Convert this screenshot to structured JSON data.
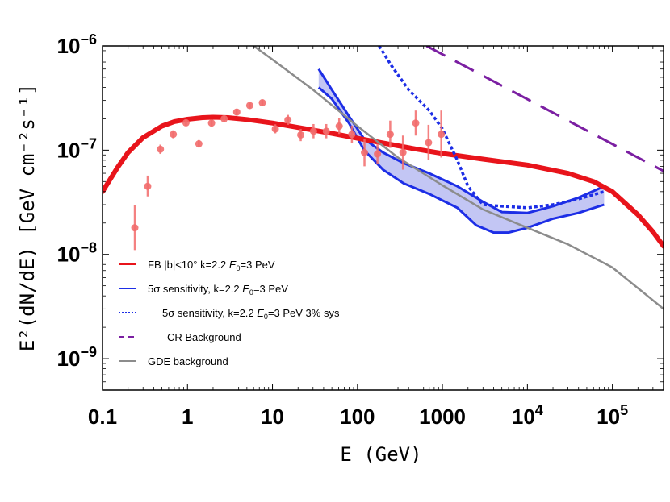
{
  "chart_data": {
    "type": "line",
    "title": "",
    "xlabel": "E  (GeV)",
    "ylabel": "E²(dN/dE)  [GeV cm⁻²s⁻¹]",
    "xscale": "log",
    "yscale": "log",
    "xlim": [
      0.1,
      400000
    ],
    "ylim": [
      5e-10,
      1e-06
    ],
    "grid": false,
    "legend_position": "bottom-left",
    "x_ticks": [
      {
        "value": 0.1,
        "label": "0.1"
      },
      {
        "value": 1,
        "label": "1"
      },
      {
        "value": 10,
        "label": "10"
      },
      {
        "value": 100,
        "label": "100"
      },
      {
        "value": 1000,
        "label": "1000"
      },
      {
        "value": 10000,
        "label": "10",
        "sup": "4"
      },
      {
        "value": 100000,
        "label": "10",
        "sup": "5"
      }
    ],
    "y_ticks": [
      {
        "value": 1e-09,
        "label": "10",
        "sup": "−9"
      },
      {
        "value": 1e-08,
        "label": "10",
        "sup": "−8"
      },
      {
        "value": 1e-07,
        "label": "10",
        "sup": "−7"
      },
      {
        "value": 1e-06,
        "label": "10",
        "sup": "−6"
      }
    ],
    "series": [
      {
        "name": "FB |b|<10° k=2.2 E0=3 PeV",
        "legend_label": "FB |b|<10° k=2.2 ",
        "legend_label_italic": "E",
        "legend_label_sub": "0",
        "legend_label_tail": "=3 PeV",
        "color": "#e8141b",
        "style": "solid-thick",
        "points": [
          [
            0.1,
            4e-08
          ],
          [
            0.15,
            6.8e-08
          ],
          [
            0.2,
            9.5e-08
          ],
          [
            0.3,
            1.32e-07
          ],
          [
            0.5,
            1.7e-07
          ],
          [
            0.7,
            1.88e-07
          ],
          [
            1,
            1.98e-07
          ],
          [
            1.5,
            2.05e-07
          ],
          [
            2,
            2.07e-07
          ],
          [
            3,
            2.05e-07
          ],
          [
            5,
            1.97e-07
          ],
          [
            10,
            1.82e-07
          ],
          [
            20,
            1.65e-07
          ],
          [
            50,
            1.45e-07
          ],
          [
            100,
            1.3e-07
          ],
          [
            200,
            1.17e-07
          ],
          [
            500,
            1.02e-07
          ],
          [
            1000,
            9.3e-08
          ],
          [
            3000,
            8.2e-08
          ],
          [
            10000,
            7.2e-08
          ],
          [
            30000,
            6e-08
          ],
          [
            60000,
            5e-08
          ],
          [
            100000,
            4e-08
          ],
          [
            200000,
            2.4e-08
          ],
          [
            300000,
            1.65e-08
          ],
          [
            400000,
            1.2e-08
          ]
        ]
      },
      {
        "name": "5σ sensitivity, k=2.2 E0=3 PeV",
        "legend_label": "5σ sensitivity, k=2.2 ",
        "legend_label_italic": "E",
        "legend_label_sub": "0",
        "legend_label_tail": "=3 PeV",
        "color": "#1d2ee6",
        "style": "band",
        "upper": [
          [
            35,
            6e-07
          ],
          [
            50,
            3.8e-07
          ],
          [
            80,
            2.1e-07
          ],
          [
            120,
            1.28e-07
          ],
          [
            200,
            9.5e-08
          ],
          [
            350,
            7.5e-08
          ],
          [
            700,
            6e-08
          ],
          [
            1500,
            4.5e-08
          ],
          [
            3000,
            3.2e-08
          ],
          [
            5000,
            2.55e-08
          ],
          [
            10000,
            2.5e-08
          ],
          [
            20000,
            2.9e-08
          ],
          [
            40000,
            3.5e-08
          ],
          [
            80000,
            4.5e-08
          ]
        ],
        "lower": [
          [
            35,
            4e-07
          ],
          [
            50,
            3.1e-07
          ],
          [
            80,
            1.8e-07
          ],
          [
            120,
            1e-07
          ],
          [
            200,
            6.5e-08
          ],
          [
            350,
            4.8e-08
          ],
          [
            700,
            3.8e-08
          ],
          [
            1500,
            2.8e-08
          ],
          [
            2500,
            1.9e-08
          ],
          [
            4000,
            1.62e-08
          ],
          [
            6000,
            1.62e-08
          ],
          [
            10000,
            1.8e-08
          ],
          [
            20000,
            2.2e-08
          ],
          [
            40000,
            2.5e-08
          ],
          [
            80000,
            3e-08
          ]
        ]
      },
      {
        "name": "5σ sensitivity, k=2.2 E0=3 PeV 3% sys",
        "legend_label": "5σ sensitivity, k=2.2 ",
        "legend_label_italic": "E",
        "legend_label_sub": "0",
        "legend_label_tail": "=3 PeV 3% sys",
        "color": "#1d2ee6",
        "style": "dotted",
        "points": [
          [
            180,
            1e-06
          ],
          [
            250,
            6.5e-07
          ],
          [
            400,
            3.8e-07
          ],
          [
            700,
            2.4e-07
          ],
          [
            1000,
            1.6e-07
          ],
          [
            1500,
            8e-08
          ],
          [
            2000,
            4.5e-08
          ],
          [
            3000,
            3e-08
          ],
          [
            5000,
            2.9e-08
          ],
          [
            10000,
            2.8e-08
          ],
          [
            20000,
            3e-08
          ],
          [
            40000,
            3.4e-08
          ],
          [
            80000,
            4e-08
          ]
        ]
      },
      {
        "name": "CR Background",
        "legend_label": "CR Background",
        "color": "#7b1fa2",
        "style": "dashed",
        "points": [
          [
            650,
            1e-06
          ],
          [
            400000,
            6.3e-08
          ]
        ]
      },
      {
        "name": "GDE background",
        "legend_label": "GDE background",
        "color": "#8c8c8c",
        "style": "solid",
        "points": [
          [
            6,
            1e-06
          ],
          [
            10,
            7.4e-07
          ],
          [
            30,
            3.8e-07
          ],
          [
            100,
            1.7e-07
          ],
          [
            300,
            8.5e-08
          ],
          [
            1000,
            4.6e-08
          ],
          [
            3000,
            2.7e-08
          ],
          [
            10000,
            1.8e-08
          ],
          [
            30000,
            1.25e-08
          ],
          [
            100000,
            7.5e-09
          ],
          [
            400000,
            3e-09
          ]
        ]
      }
    ],
    "data_points": {
      "name": "data",
      "color": "#f26b6b",
      "points": [
        {
          "x": 0.24,
          "y": 1.8e-08,
          "lo": 1.1e-08,
          "hi": 3e-08
        },
        {
          "x": 0.34,
          "y": 4.5e-08,
          "lo": 3.6e-08,
          "hi": 5.7e-08
        },
        {
          "x": 0.48,
          "y": 1.02e-07,
          "lo": 9.2e-08,
          "hi": 1.13e-07
        },
        {
          "x": 0.68,
          "y": 1.42e-07,
          "lo": 1.3e-07,
          "hi": 1.55e-07
        },
        {
          "x": 0.96,
          "y": 1.83e-07,
          "lo": 1.72e-07,
          "hi": 1.95e-07
        },
        {
          "x": 1.36,
          "y": 1.15e-07,
          "lo": 1.06e-07,
          "hi": 1.25e-07
        },
        {
          "x": 1.92,
          "y": 1.82e-07,
          "lo": 1.7e-07,
          "hi": 1.95e-07
        },
        {
          "x": 2.7,
          "y": 2e-07,
          "lo": 1.87e-07,
          "hi": 2.13e-07
        },
        {
          "x": 3.8,
          "y": 2.32e-07,
          "lo": 2.17e-07,
          "hi": 2.48e-07
        },
        {
          "x": 5.4,
          "y": 2.68e-07,
          "lo": 2.52e-07,
          "hi": 2.85e-07
        },
        {
          "x": 7.6,
          "y": 2.85e-07,
          "lo": 2.68e-07,
          "hi": 3.03e-07
        },
        {
          "x": 10.8,
          "y": 1.6e-07,
          "lo": 1.45e-07,
          "hi": 1.77e-07
        },
        {
          "x": 15.2,
          "y": 1.95e-07,
          "lo": 1.75e-07,
          "hi": 2.18e-07
        },
        {
          "x": 21.5,
          "y": 1.4e-07,
          "lo": 1.22e-07,
          "hi": 1.6e-07
        },
        {
          "x": 30.4,
          "y": 1.52e-07,
          "lo": 1.3e-07,
          "hi": 1.78e-07
        },
        {
          "x": 43,
          "y": 1.52e-07,
          "lo": 1.3e-07,
          "hi": 1.78e-07
        },
        {
          "x": 61,
          "y": 1.7e-07,
          "lo": 1.43e-07,
          "hi": 2.02e-07
        },
        {
          "x": 86,
          "y": 1.42e-07,
          "lo": 1.17e-07,
          "hi": 1.72e-07
        },
        {
          "x": 121,
          "y": 9.5e-08,
          "lo": 7e-08,
          "hi": 1.28e-07
        },
        {
          "x": 172,
          "y": 9.2e-08,
          "lo": 7.3e-08,
          "hi": 1.15e-07
        },
        {
          "x": 243,
          "y": 1.42e-07,
          "lo": 1.05e-07,
          "hi": 1.92e-07
        },
        {
          "x": 343,
          "y": 9.5e-08,
          "lo": 6.5e-08,
          "hi": 1.38e-07
        },
        {
          "x": 485,
          "y": 1.82e-07,
          "lo": 1.38e-07,
          "hi": 2.4e-07
        },
        {
          "x": 686,
          "y": 1.18e-07,
          "lo": 8e-08,
          "hi": 1.75e-07
        },
        {
          "x": 970,
          "y": 1.42e-07,
          "lo": 8.5e-08,
          "hi": 2.4e-07
        }
      ]
    }
  }
}
